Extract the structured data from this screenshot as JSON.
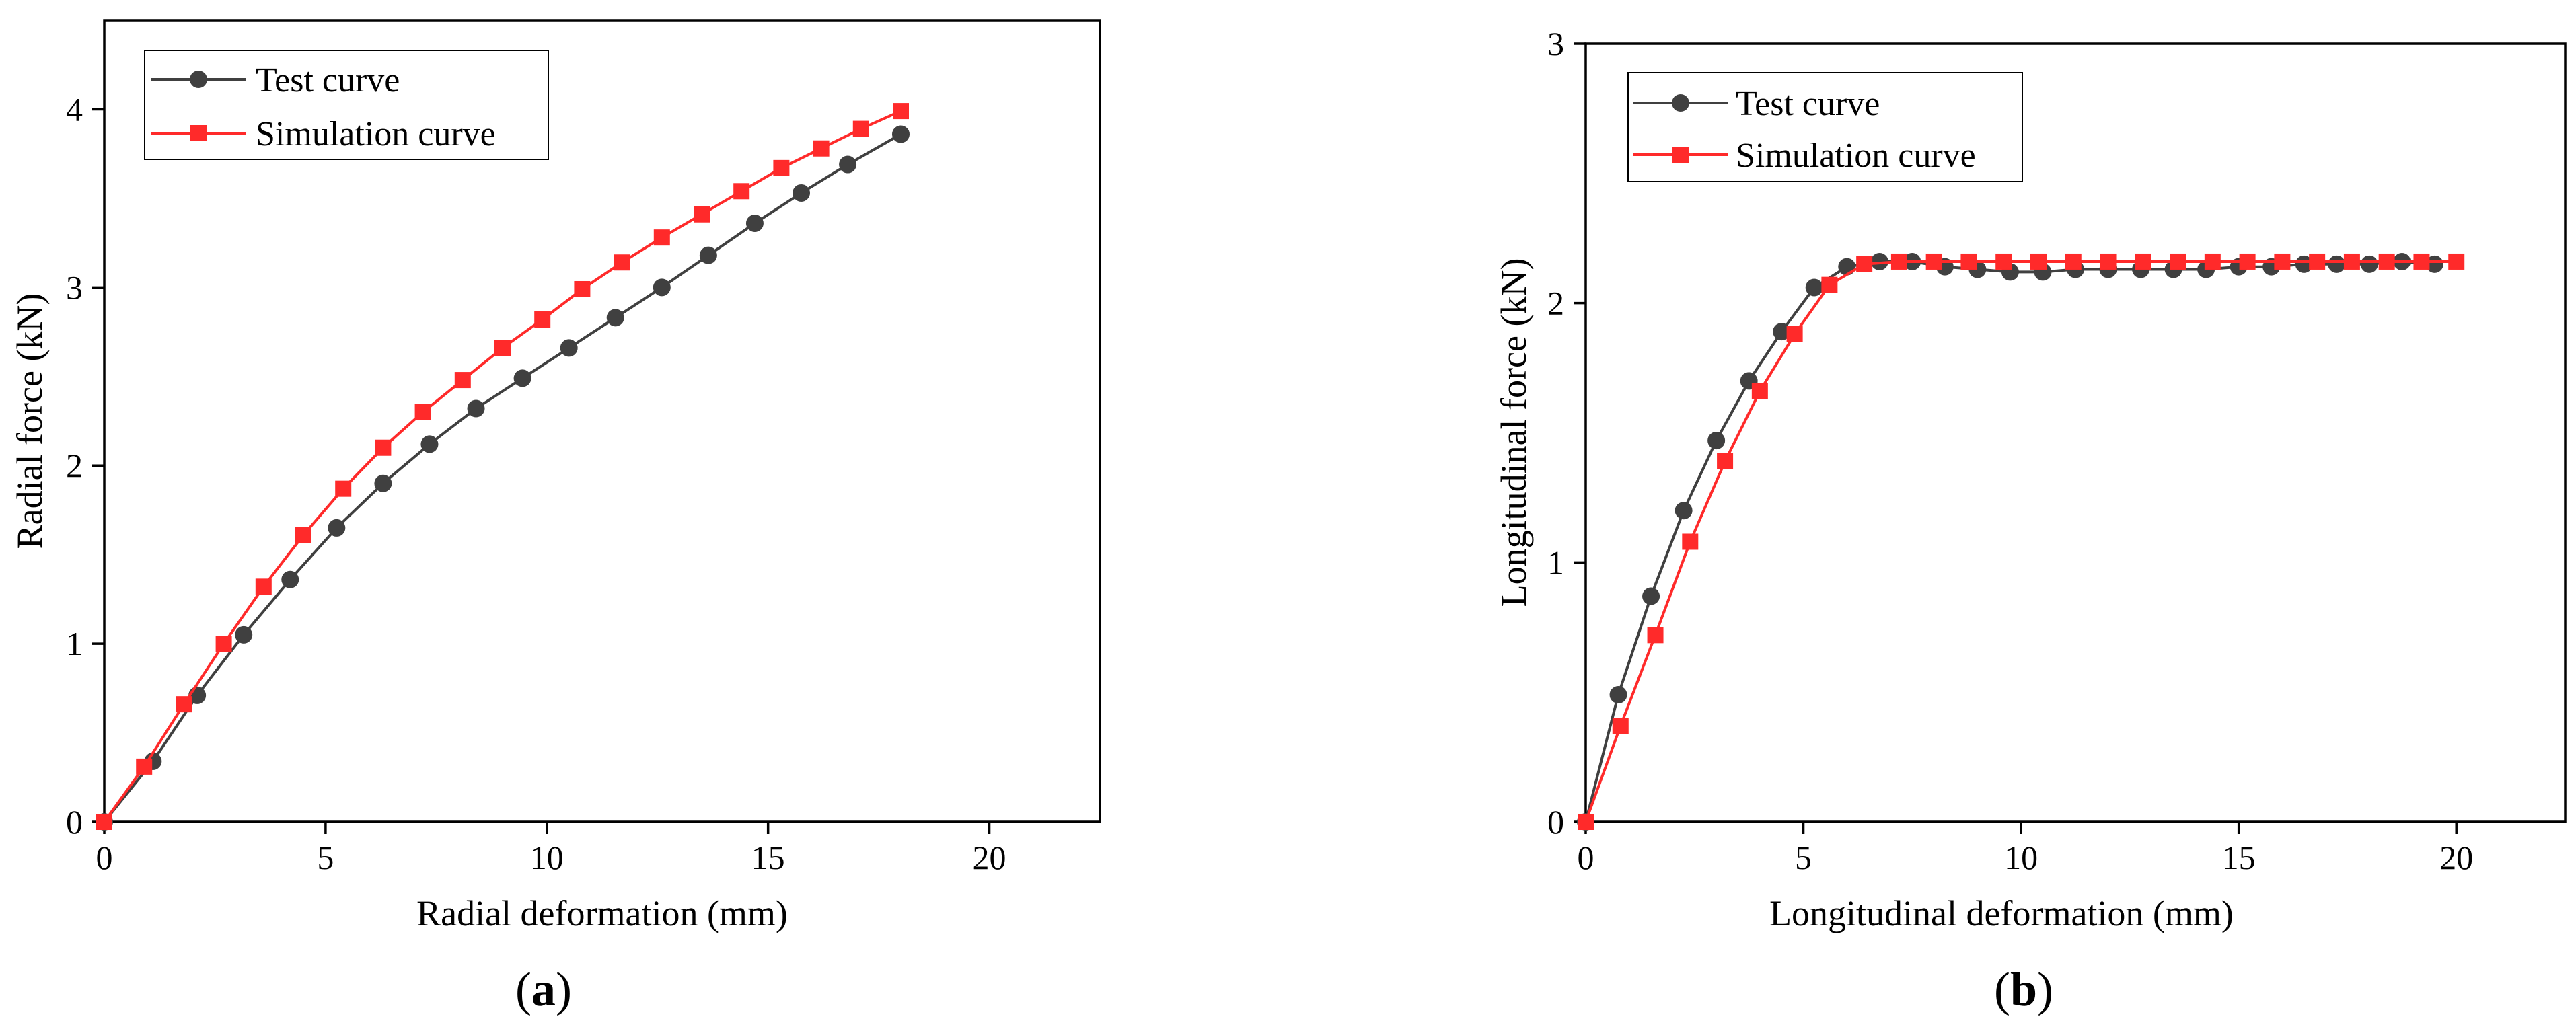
{
  "chart_data": [
    {
      "type": "line",
      "panel_label": "a",
      "xlabel": "Radial deformation (mm)",
      "ylabel": "Radial force (kN)",
      "xlim": [
        0,
        22.5
      ],
      "ylim": [
        0,
        4.5
      ],
      "xticks": [
        0,
        5,
        10,
        15,
        20
      ],
      "yticks": [
        0,
        1,
        2,
        3,
        4
      ],
      "legend_position": "top-left",
      "series": [
        {
          "name": "Test curve",
          "color": "#404040",
          "marker": "circle",
          "x": [
            0,
            1.1,
            2.1,
            3.15,
            4.2,
            5.25,
            6.3,
            7.35,
            8.4,
            9.45,
            10.5,
            11.55,
            12.6,
            13.65,
            14.7,
            15.75,
            16.8,
            18.0
          ],
          "y": [
            0,
            0.34,
            0.71,
            1.05,
            1.36,
            1.65,
            1.9,
            2.12,
            2.32,
            2.49,
            2.66,
            2.83,
            3.0,
            3.18,
            3.36,
            3.53,
            3.69,
            3.86
          ]
        },
        {
          "name": "Simulation curve",
          "color": "#ff2a2a",
          "marker": "square",
          "x": [
            0,
            0.9,
            1.8,
            2.7,
            3.6,
            4.5,
            5.4,
            6.3,
            7.2,
            8.1,
            9.0,
            9.9,
            10.8,
            11.7,
            12.6,
            13.5,
            14.4,
            15.3,
            16.2,
            17.1,
            18.0
          ],
          "y": [
            0,
            0.31,
            0.66,
            1.0,
            1.32,
            1.61,
            1.87,
            2.1,
            2.3,
            2.48,
            2.66,
            2.82,
            2.99,
            3.14,
            3.28,
            3.41,
            3.54,
            3.67,
            3.78,
            3.89,
            3.99
          ]
        }
      ]
    },
    {
      "type": "line",
      "panel_label": "b",
      "xlabel": "Longitudinal deformation (mm)",
      "ylabel": "Longitudinal force (kN)",
      "xlim": [
        0,
        22.5
      ],
      "ylim": [
        0,
        3
      ],
      "xticks": [
        0,
        5,
        10,
        15,
        20
      ],
      "yticks": [
        0,
        1,
        2,
        3
      ],
      "legend_position": "top-left",
      "series": [
        {
          "name": "Test curve",
          "color": "#404040",
          "marker": "circle",
          "x": [
            0,
            0.75,
            1.5,
            2.25,
            3.0,
            3.75,
            4.5,
            5.25,
            6.0,
            6.75,
            7.5,
            8.25,
            9.0,
            9.75,
            10.5,
            11.25,
            12.0,
            12.75,
            13.5,
            14.25,
            15.0,
            15.75,
            16.5,
            17.25,
            18.0,
            18.75,
            19.5
          ],
          "y": [
            0,
            0.49,
            0.87,
            1.2,
            1.47,
            1.7,
            1.89,
            2.06,
            2.14,
            2.16,
            2.16,
            2.14,
            2.13,
            2.12,
            2.12,
            2.13,
            2.13,
            2.13,
            2.13,
            2.13,
            2.14,
            2.14,
            2.15,
            2.15,
            2.15,
            2.16,
            2.15
          ]
        },
        {
          "name": "Simulation curve",
          "color": "#ff2a2a",
          "marker": "square",
          "x": [
            0,
            0.8,
            1.6,
            2.4,
            3.2,
            4.0,
            4.8,
            5.6,
            6.4,
            7.2,
            8.0,
            8.8,
            9.6,
            10.4,
            11.2,
            12.0,
            12.8,
            13.6,
            14.4,
            15.2,
            16.0,
            16.8,
            17.6,
            18.4,
            19.2,
            20.0
          ],
          "y": [
            0,
            0.37,
            0.72,
            1.08,
            1.39,
            1.66,
            1.88,
            2.07,
            2.15,
            2.16,
            2.16,
            2.16,
            2.16,
            2.16,
            2.16,
            2.16,
            2.16,
            2.16,
            2.16,
            2.16,
            2.16,
            2.16,
            2.16,
            2.16,
            2.16,
            2.16
          ]
        }
      ]
    }
  ]
}
